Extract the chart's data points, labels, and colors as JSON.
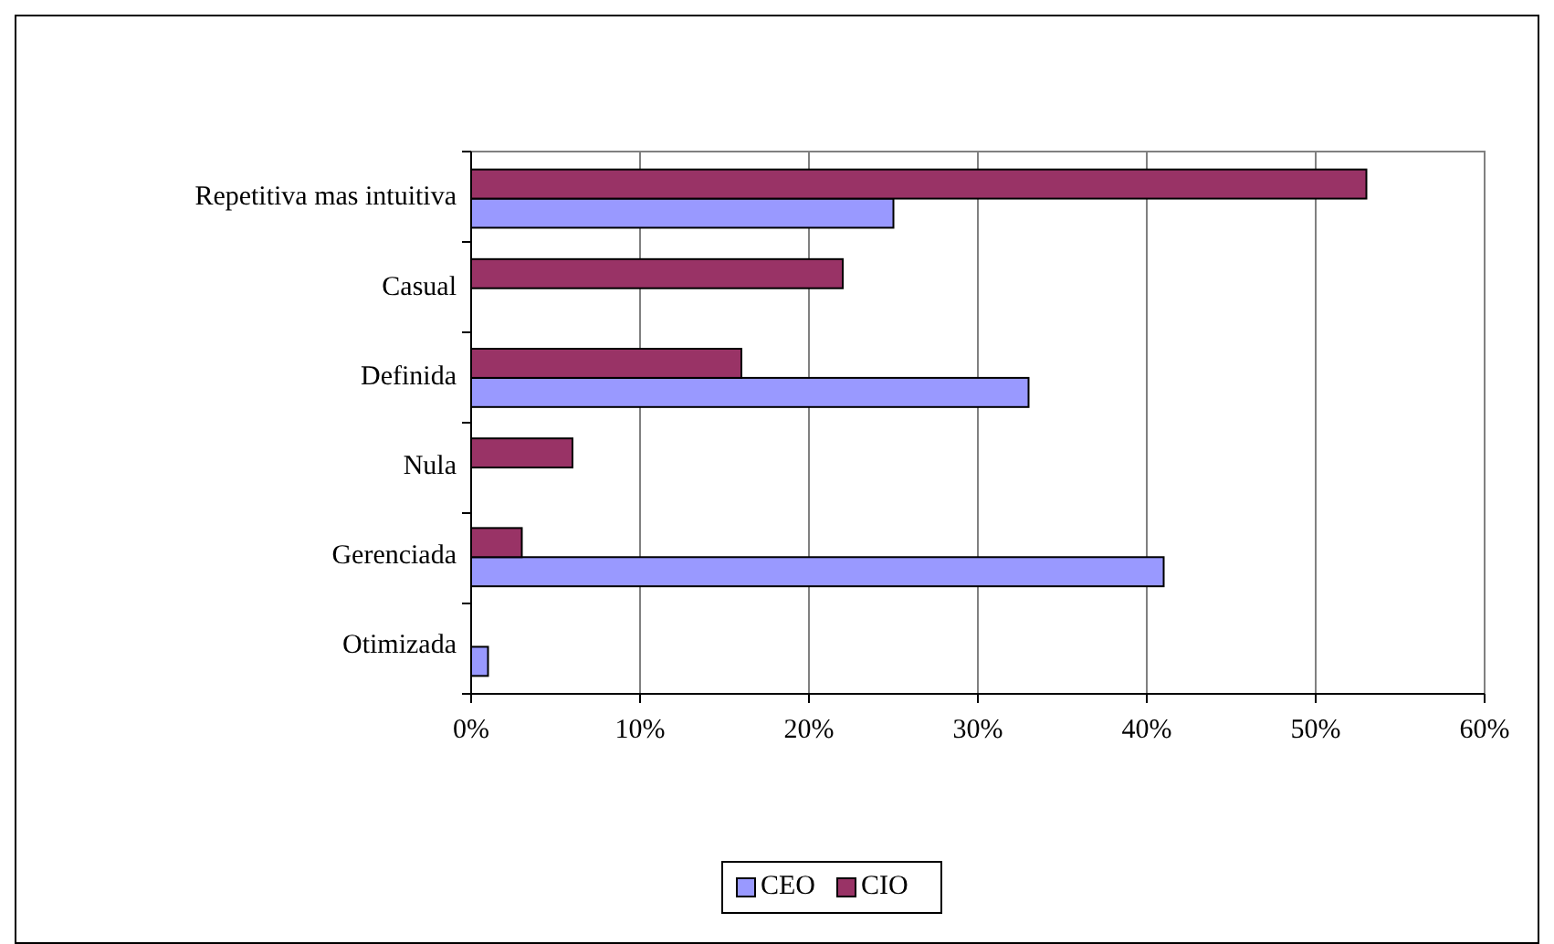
{
  "chart_data": {
    "type": "bar",
    "orientation": "horizontal",
    "categories": [
      "Repetitiva mas intuitiva",
      "Casual",
      "Definida",
      "Nula",
      "Gerenciada",
      "Otimizada"
    ],
    "series": [
      {
        "name": "CEO",
        "color": "#9999ff",
        "values": [
          25,
          0,
          33,
          0,
          41,
          1
        ]
      },
      {
        "name": "CIO",
        "color": "#993366",
        "values": [
          53,
          22,
          16,
          6,
          3,
          0
        ]
      }
    ],
    "xlim": [
      0,
      60
    ],
    "xticks": [
      {
        "value": 0,
        "label": "0%"
      },
      {
        "value": 10,
        "label": "10%"
      },
      {
        "value": 20,
        "label": "20%"
      },
      {
        "value": 30,
        "label": "30%"
      },
      {
        "value": 40,
        "label": "40%"
      },
      {
        "value": 50,
        "label": "50%"
      },
      {
        "value": 60,
        "label": "60%"
      }
    ],
    "grid": "x",
    "legend": "bottom"
  }
}
